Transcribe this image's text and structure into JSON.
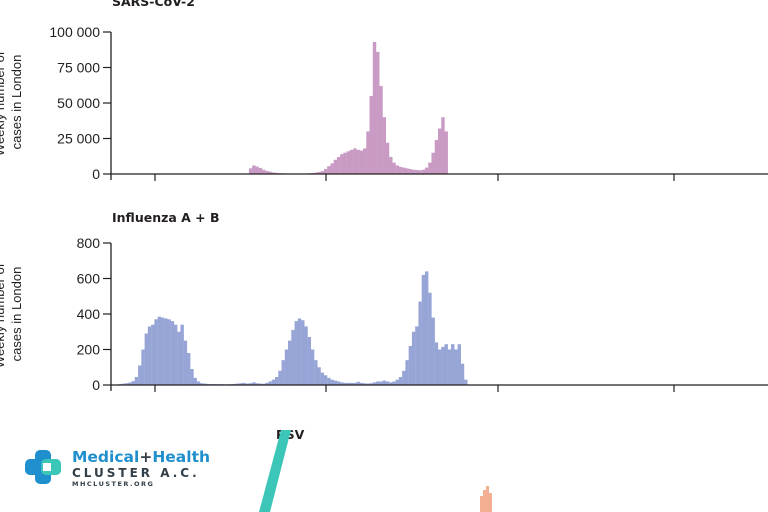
{
  "chart_data": [
    {
      "type": "bar",
      "title": "SARS-CoV-2",
      "ylabel": "Weekly number of cases in London",
      "ylim": [
        0,
        100000
      ],
      "yticks": [
        "0",
        "25 000",
        "50 000",
        "75 000",
        "100 000"
      ],
      "ytick_values": [
        0,
        25000,
        50000,
        75000,
        100000
      ],
      "color": "#c89ac4",
      "week_start": 42,
      "values": [
        4000,
        6000,
        5200,
        4200,
        3000,
        2200,
        1600,
        1100,
        800,
        600,
        500,
        400,
        350,
        300,
        300,
        300,
        350,
        400,
        500,
        700,
        1000,
        1400,
        2000,
        3500,
        5500,
        7500,
        10000,
        12000,
        14000,
        15000,
        16000,
        17000,
        18000,
        17000,
        16500,
        18000,
        30000,
        55000,
        93000,
        86000,
        62000,
        40000,
        22000,
        12000,
        8000,
        6000,
        5000,
        4500,
        4000,
        3500,
        3000,
        2800,
        2600,
        3000,
        4500,
        8000,
        15000,
        24000,
        32000,
        40000,
        30000
      ]
    },
    {
      "type": "bar",
      "title": "Influenza A + B",
      "ylabel": "Weekly number of cases in London",
      "ylim": [
        0,
        800
      ],
      "yticks": [
        "0",
        "200",
        "400",
        "600",
        "800"
      ],
      "ytick_values": [
        0,
        200,
        400,
        600,
        800
      ],
      "color": "#97a5d6",
      "week_start": 2,
      "values": [
        5,
        8,
        10,
        14,
        22,
        45,
        110,
        200,
        290,
        330,
        340,
        370,
        385,
        380,
        375,
        370,
        360,
        340,
        300,
        340,
        250,
        180,
        90,
        40,
        20,
        10,
        8,
        6,
        5,
        5,
        5,
        5,
        4,
        4,
        5,
        6,
        8,
        10,
        12,
        8,
        10,
        15,
        10,
        8,
        7,
        12,
        20,
        30,
        45,
        80,
        140,
        200,
        250,
        310,
        360,
        375,
        365,
        330,
        270,
        200,
        140,
        100,
        70,
        55,
        40,
        30,
        25,
        20,
        15,
        12,
        12,
        12,
        12,
        18,
        12,
        10,
        8,
        10,
        15,
        20,
        20,
        25,
        20,
        15,
        20,
        30,
        45,
        80,
        140,
        220,
        300,
        330,
        470,
        620,
        640,
        520,
        380,
        240,
        200,
        215,
        230,
        200,
        230,
        200,
        230,
        120,
        30
      ]
    }
  ],
  "panel3": {
    "title": "RSV",
    "color": "#f4ae92"
  },
  "logo": {
    "name_left": "Medical",
    "name_plus": "+",
    "name_right": "Health",
    "sub": "CLUSTER A.C.",
    "url": "MHCLUSTER.ORG",
    "colors": {
      "blue": "#1f8fce",
      "teal": "#3cc6b8",
      "dark": "#333f48"
    }
  }
}
